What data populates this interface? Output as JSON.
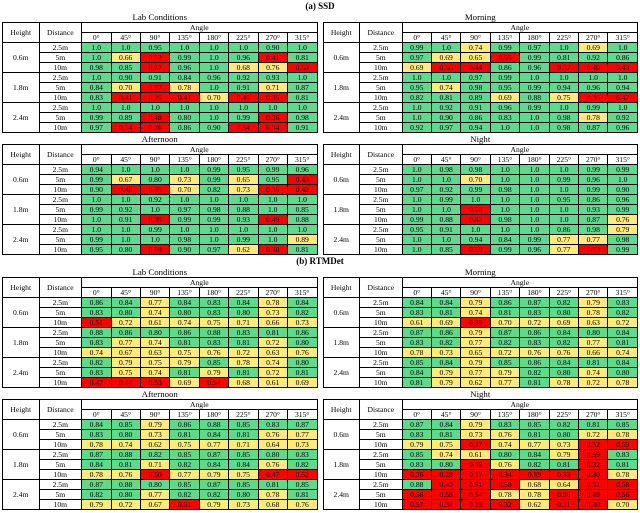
{
  "table_headers": {
    "height_label": "Height",
    "distance_label": "Distance",
    "angle_label": "Angle",
    "angles": [
      "0°",
      "45°",
      "90°",
      "135°",
      "180°",
      "225°",
      "270°",
      "315°"
    ],
    "heights": [
      "0.6m",
      "1.8m",
      "2.4m"
    ],
    "distances": [
      "2.5m",
      "5m",
      "10m"
    ]
  },
  "color_scale": {
    "green": "#5dda8d",
    "yellow": "#ffea7a",
    "red": "#fe0000",
    "green_min": 0.8,
    "yellow_min": 0.6
  },
  "color_overrides": [
    {
      "section": 0,
      "table": 2,
      "row": 7,
      "col": 7,
      "color": "yellow"
    }
  ],
  "sections": [
    {
      "caption": "(a) SSD",
      "tables": [
        {
          "title": "Lab Conditions",
          "values": [
            [
              "1.0",
              "1.0",
              "0.95",
              "1.0",
              "1.0",
              "1.0",
              "0.90",
              "1.0"
            ],
            [
              "1.0",
              "0.66",
              "0.52",
              "0.99",
              "1.0",
              "0.96",
              "0.41",
              "0.81"
            ],
            [
              "0.98",
              "0.85",
              "0.57",
              "0.96",
              "1.0",
              "0.68",
              "0.76",
              "0.50"
            ],
            [
              "1.0",
              "0.90",
              "0.91",
              "0.84",
              "0.96",
              "0.92",
              "0.93",
              "1.0"
            ],
            [
              "0.84",
              "0.70",
              "0.37",
              "0.78",
              "1.0",
              "0.91",
              "0.71",
              "0.87"
            ],
            [
              "0.83",
              "0.41",
              "0.25",
              "0.41",
              "0.70",
              "0.45",
              "0.35",
              "0.81"
            ],
            [
              "1.0",
              "1.0",
              "1.0",
              "1.0",
              "1.0",
              "1.0",
              "1.0",
              "1.0"
            ],
            [
              "0.99",
              "0.89",
              "0.48",
              "0.80",
              "1.0",
              "0.99",
              "0.36",
              "0.98"
            ],
            [
              "0.97",
              "0.54",
              "0.26",
              "0.86",
              "0.90",
              "0.54",
              "0.34",
              "0.91"
            ]
          ]
        },
        {
          "title": "Morning",
          "values": [
            [
              "0.99",
              "1.0",
              "0.74",
              "0.99",
              "0.97",
              "1.0",
              "0.69",
              "1.0"
            ],
            [
              "0.97",
              "0.69",
              "0.65",
              "0.55",
              "0.99",
              "0.81",
              "0.92",
              "0.86"
            ],
            [
              "0.69",
              "0.56",
              "0.44",
              "0.86",
              "0.96",
              "0.57",
              "0.40",
              "0.43"
            ],
            [
              "1.0",
              "1.0",
              "0.97",
              "0.99",
              "1.0",
              "1.0",
              "1.0",
              "1.0"
            ],
            [
              "0.95",
              "0.74",
              "0.98",
              "0.95",
              "0.99",
              "0.94",
              "0.96",
              "0.94"
            ],
            [
              "0.82",
              "0.81",
              "0.89",
              "0.69",
              "0.88",
              "0.75",
              "0.35",
              "0.47"
            ],
            [
              "1.0",
              "0.92",
              "0.91",
              "0.96",
              "0.99",
              "1.0",
              "0.99",
              "1.0"
            ],
            [
              "1.0",
              "0.90",
              "0.86",
              "0.83",
              "1.0",
              "0.98",
              "0.78",
              "0.92"
            ],
            [
              "0.92",
              "0.97",
              "0.94",
              "1.0",
              "1.0",
              "0.98",
              "0.87",
              "0.96"
            ]
          ]
        },
        {
          "title": "Afternoon",
          "values": [
            [
              "0.94",
              "1.0",
              "1.0",
              "1.0",
              "0.99",
              "0.95",
              "0.99",
              "0.96"
            ],
            [
              "0.99",
              "0.67",
              "0.80",
              "0.73",
              "0.99",
              "0.65",
              "0.95",
              "0.43"
            ],
            [
              "0.90",
              "0.48",
              "0.35",
              "0.70",
              "0.82",
              "0.73",
              "0.35",
              "0.42"
            ],
            [
              "1.0",
              "1.0",
              "0.92",
              "1.0",
              "1.0",
              "1.0",
              "1.0",
              "1.0"
            ],
            [
              "0.99",
              "0.92",
              "1.0",
              "0.97",
              "0.98",
              "0.88",
              "1.0",
              "0.85"
            ],
            [
              "1.0",
              "0.91",
              "0.39",
              "0.99",
              "0.99",
              "0.93",
              "0.49",
              "0.88"
            ],
            [
              "1.0",
              "1.0",
              "0.99",
              "1.0",
              "1.0",
              "1.0",
              "1.0",
              "1.0"
            ],
            [
              "0.99",
              "1.0",
              "1.0",
              "0.98",
              "1.0",
              "0.99",
              "1.0",
              "0.89"
            ],
            [
              "0.95",
              "0.80",
              "0.59",
              "0.90",
              "0.97",
              "0.62",
              "0.30",
              "0.81"
            ]
          ]
        },
        {
          "title": "Night",
          "values": [
            [
              "1.0",
              "0.98",
              "0.98",
              "1.0",
              "1.0",
              "1.0",
              "0.99",
              "0.99"
            ],
            [
              "1.0",
              "1.0",
              "0.70",
              "1.0",
              "1.0",
              "0.99",
              "0.96",
              "1.0"
            ],
            [
              "0.97",
              "0.92",
              "0.99",
              "0.98",
              "1.0",
              "1.0",
              "0.99",
              "0.90"
            ],
            [
              "1.0",
              "0.99",
              "1.0",
              "1.0",
              "1.0",
              "0.95",
              "0.86",
              "0.96"
            ],
            [
              "1.0",
              "1.0",
              "0.58",
              "1.0",
              "1.0",
              "1.0",
              "0.93",
              "0.99"
            ],
            [
              "0.99",
              "0.88",
              "0.43",
              "0.98",
              "1.0",
              "1.0",
              "0.87",
              "0.76"
            ],
            [
              "0.95",
              "0.91",
              "1.0",
              "1.0",
              "1.0",
              "0.86",
              "0.98",
              "0.79"
            ],
            [
              "1.0",
              "1.0",
              "0.94",
              "0.84",
              "0.99",
              "0.77",
              "0.77",
              "0.98"
            ],
            [
              "1.0",
              "0.85",
              "0.50",
              "0.99",
              "0.96",
              "0.77",
              "0.53",
              "0.99"
            ]
          ]
        }
      ]
    },
    {
      "caption": "(b) RTMDet",
      "tables": [
        {
          "title": "Lab Conditions",
          "values": [
            [
              "0.86",
              "0.84",
              "0.77",
              "0.84",
              "0.83",
              "0.84",
              "0.78",
              "0.84"
            ],
            [
              "0.83",
              "0.80",
              "0.74",
              "0.80",
              "0.83",
              "0.80",
              "0.73",
              "0.82"
            ],
            [
              "0.51",
              "0.72",
              "0.61",
              "0.74",
              "0.75",
              "0.71",
              "0.66",
              "0.73"
            ],
            [
              "0.88",
              "0.86",
              "0.80",
              "0.86",
              "0.88",
              "0.83",
              "0.81",
              "0.86"
            ],
            [
              "0.83",
              "0.77",
              "0.74",
              "0.81",
              "0.83",
              "0.81",
              "0.72",
              "0.80"
            ],
            [
              "0.74",
              "0.67",
              "0.63",
              "0.75",
              "0.76",
              "0.72",
              "0.63",
              "0.76"
            ],
            [
              "0.82",
              "0.79",
              "0.75",
              "0.79",
              "0.85",
              "0.78",
              "0.74",
              "0.80"
            ],
            [
              "0.83",
              "0.75",
              "0.74",
              "0.81",
              "0.79",
              "0.81",
              "0.72",
              "0.81"
            ],
            [
              "0.47",
              "0.44",
              "0.53",
              "0.69",
              "0.54",
              "0.68",
              "0.61",
              "0.69"
            ]
          ]
        },
        {
          "title": "Morning",
          "values": [
            [
              "0.84",
              "0.84",
              "0.79",
              "0.86",
              "0.87",
              "0.82",
              "0.79",
              "0.83"
            ],
            [
              "0.83",
              "0.81",
              "0.74",
              "0.81",
              "0.83",
              "0.80",
              "0.78",
              "0.82"
            ],
            [
              "0.61",
              "0.69",
              "0.39",
              "0.70",
              "0.72",
              "0.69",
              "0.63",
              "0.72"
            ],
            [
              "0.87",
              "0.86",
              "0.79",
              "0.87",
              "0.86",
              "0.84",
              "0.80",
              "0.84"
            ],
            [
              "0.83",
              "0.82",
              "0.77",
              "0.82",
              "0.83",
              "0.82",
              "0.77",
              "0.81"
            ],
            [
              "0.78",
              "0.73",
              "0.65",
              "0.72",
              "0.76",
              "0.76",
              "0.66",
              "0.74"
            ],
            [
              "0.85",
              "0.84",
              "0.79",
              "0.85",
              "0.86",
              "0.84",
              "0.81",
              "0.84"
            ],
            [
              "0.84",
              "0.79",
              "0.77",
              "0.79",
              "0.82",
              "0.80",
              "0.74",
              "0.80"
            ],
            [
              "0.81",
              "0.79",
              "0.62",
              "0.77",
              "0.81",
              "0.78",
              "0.72",
              "0.78"
            ]
          ]
        },
        {
          "title": "Afternoon",
          "values": [
            [
              "0.84",
              "0.85",
              "0.79",
              "0.86",
              "0.88",
              "0.85",
              "0.83",
              "0.87"
            ],
            [
              "0.83",
              "0.80",
              "0.73",
              "0.81",
              "0.84",
              "0.81",
              "0.76",
              "0.77"
            ],
            [
              "0.78",
              "0.74",
              "0.62",
              "0.75",
              "0.77",
              "0.71",
              "0.64",
              "0.73"
            ],
            [
              "0.87",
              "0.88",
              "0.82",
              "0.85",
              "0.87",
              "0.85",
              "0.80",
              "0.83"
            ],
            [
              "0.84",
              "0.81",
              "0.71",
              "0.82",
              "0.84",
              "0.84",
              "0.76",
              "0.82"
            ],
            [
              "0.78",
              "0.76",
              "0.50",
              "0.77",
              "0.79",
              "0.75",
              "0.47",
              "0.52"
            ],
            [
              "0.87",
              "0.88",
              "0.80",
              "0.85",
              "0.87",
              "0.85",
              "0.81",
              "0.85"
            ],
            [
              "0.82",
              "0.80",
              "0.77",
              "0.82",
              "0.82",
              "0.80",
              "0.78",
              "0.81"
            ],
            [
              "0.79",
              "0.72",
              "0.67",
              "0.51",
              "0.79",
              "0.73",
              "0.68",
              "0.76"
            ]
          ]
        },
        {
          "title": "Night",
          "values": [
            [
              "0.87",
              "0.84",
              "0.79",
              "0.83",
              "0.85",
              "0.82",
              "0.81",
              "0.85"
            ],
            [
              "0.83",
              "0.81",
              "0.73",
              "0.76",
              "0.81",
              "0.80",
              "0.72",
              "0.78"
            ],
            [
              "0.79",
              "0.75",
              "0.37",
              "0.74",
              "0.77",
              "0.73",
              "0.52",
              "0.59"
            ],
            [
              "0.85",
              "0.74",
              "0.61",
              "0.80",
              "0.84",
              "0.79",
              "0.59",
              "0.83"
            ],
            [
              "0.83",
              "0.80",
              "0.48",
              "0.76",
              "0.82",
              "0.81",
              "0.32",
              "0.81"
            ],
            [
              "0.36",
              "0.28",
              "0.37",
              "0.34",
              "0.59",
              "0.33",
              "0.30",
              "0.78"
            ],
            [
              "0.88",
              "0.40",
              "0.51",
              "0.58",
              "0.68",
              "0.64",
              "0.51",
              "0.58"
            ],
            [
              "0.58",
              "0.58",
              "0.54",
              "0.78",
              "0.78",
              "0.56",
              "0.49",
              "0.56"
            ],
            [
              "0.57",
              "0.34",
              "0.29",
              "0.32",
              "0.62",
              "0.31",
              "0.30",
              "0.70"
            ]
          ]
        }
      ]
    }
  ]
}
